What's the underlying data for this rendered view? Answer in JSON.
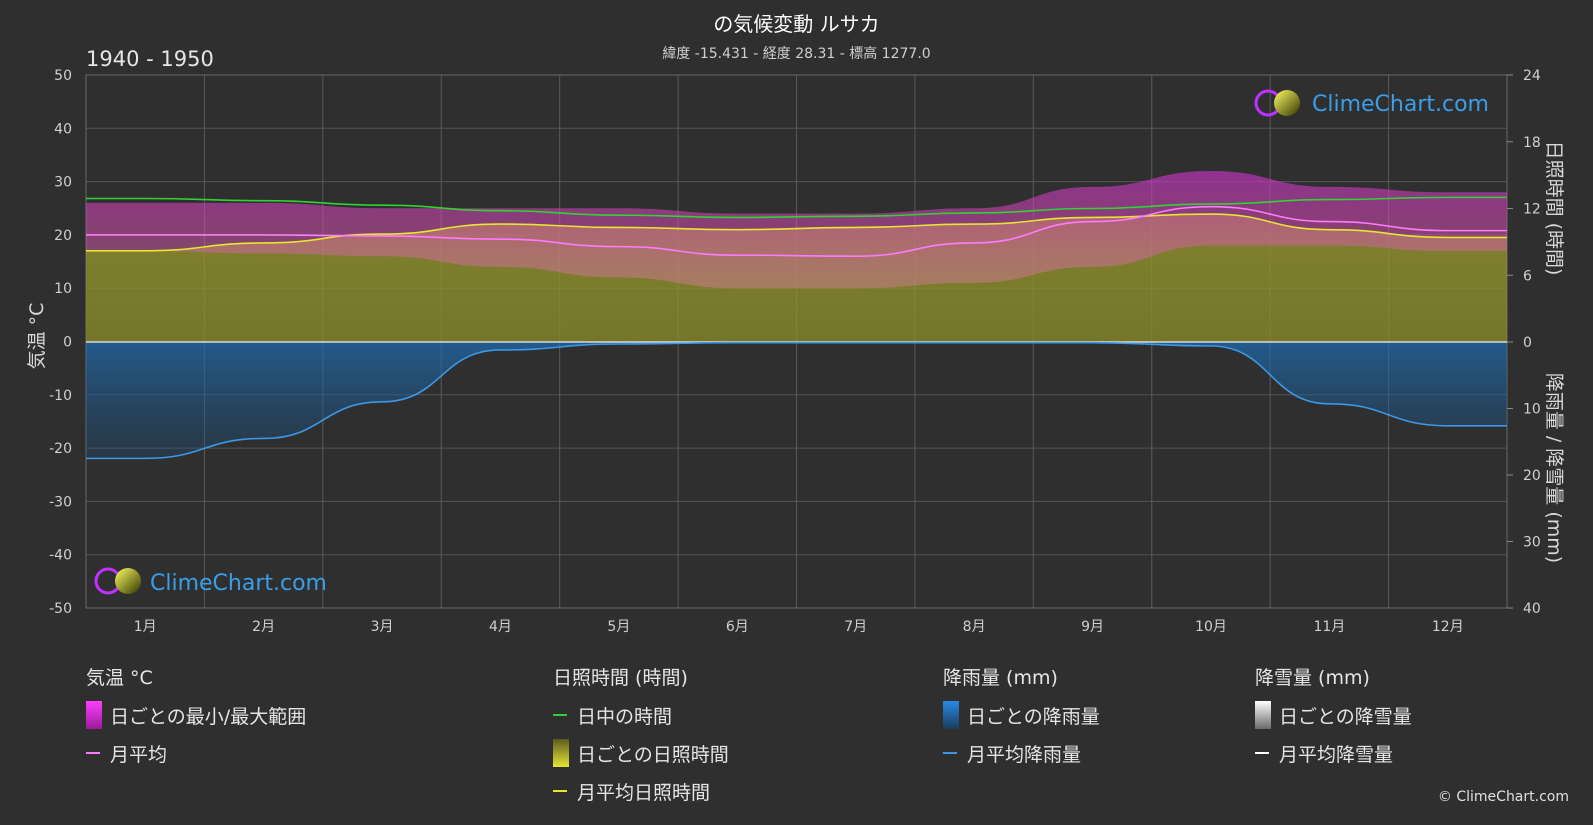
{
  "header": {
    "title": "の気候変動 ルサカ",
    "subtitle": "緯度 -15.431 - 経度 28.31 - 標高 1277.0",
    "period": "1940 - 1950"
  },
  "axes": {
    "left_label": "気温 °C",
    "right_top_label": "日照時間 (時間)",
    "right_bottom_label": "降雨量 / 降雪量 (mm)",
    "left_ticks": [
      "50",
      "40",
      "30",
      "20",
      "10",
      "0",
      "-10",
      "-20",
      "-30",
      "-40",
      "-50"
    ],
    "right_top_ticks": [
      "24",
      "18",
      "12",
      "6",
      "0"
    ],
    "right_bottom_ticks": [
      "10",
      "20",
      "30",
      "40"
    ],
    "months": [
      "1月",
      "2月",
      "3月",
      "4月",
      "5月",
      "6月",
      "7月",
      "8月",
      "9月",
      "10月",
      "11月",
      "12月"
    ]
  },
  "watermark": "ClimeChart.com",
  "legend": {
    "temp": {
      "title": "気温 °C",
      "items": [
        "日ごとの最小/最大範囲",
        "月平均"
      ]
    },
    "sun": {
      "title": "日照時間 (時間)",
      "items": [
        "日中の時間",
        "日ごとの日照時間",
        "月平均日照時間"
      ]
    },
    "rain": {
      "title": "降雨量 (mm)",
      "items": [
        "日ごとの降雨量",
        "月平均降雨量"
      ]
    },
    "snow": {
      "title": "降雪量 (mm)",
      "items": [
        "日ごとの降雪量",
        "月平均降雪量"
      ]
    }
  },
  "copyright": "© ClimeChart.com",
  "colors": {
    "background": "#2f2f2f",
    "temp_range": "#c832c8",
    "temp_mean": "#ff7aff",
    "daylight": "#32d232",
    "sunshine": "#8c8c28",
    "sunshine_mean": "#e6e632",
    "rain": "#1e6ec8",
    "rain_mean": "#3a98e6",
    "snow_mean": "#ffffff"
  },
  "chart_data": {
    "type": "area",
    "categories": [
      "1月",
      "2月",
      "3月",
      "4月",
      "5月",
      "6月",
      "7月",
      "8月",
      "9月",
      "10月",
      "11月",
      "12月"
    ],
    "ylim_temperature": [
      -50,
      50
    ],
    "ylim_sunshine_hours": [
      0,
      24
    ],
    "ylim_precipitation_mm": [
      0,
      40
    ],
    "series": [
      {
        "name": "日ごとの最小/最大範囲",
        "unit": "°C",
        "min": [
          17,
          16.5,
          16,
          14,
          12,
          10,
          10,
          11,
          14,
          18,
          18,
          17
        ],
        "max": [
          26,
          26,
          25,
          25,
          25,
          24,
          24,
          25,
          29,
          32,
          29,
          28
        ]
      },
      {
        "name": "月平均",
        "unit": "°C",
        "values": [
          20,
          20,
          19.8,
          19.2,
          17.8,
          16.2,
          16,
          18.5,
          22.5,
          25.3,
          22.5,
          20.8
        ]
      },
      {
        "name": "日中の時間",
        "unit": "時間",
        "values": [
          12.9,
          12.7,
          12.3,
          11.8,
          11.4,
          11.2,
          11.3,
          11.6,
          12.0,
          12.4,
          12.8,
          13.0
        ]
      },
      {
        "name": "月平均日照時間",
        "unit": "時間",
        "values": [
          8.2,
          8.9,
          9.7,
          10.6,
          10.3,
          10.1,
          10.3,
          10.6,
          11.2,
          11.5,
          10.1,
          9.4
        ]
      },
      {
        "name": "月平均降雨量",
        "unit": "mm",
        "values": [
          17.5,
          14.5,
          9,
          1.2,
          0.3,
          0.1,
          0.1,
          0.1,
          0.1,
          0.6,
          9.3,
          12.6
        ]
      },
      {
        "name": "月平均降雪量",
        "unit": "mm",
        "values": [
          0,
          0,
          0,
          0,
          0,
          0,
          0,
          0,
          0,
          0,
          0,
          0
        ]
      }
    ]
  }
}
